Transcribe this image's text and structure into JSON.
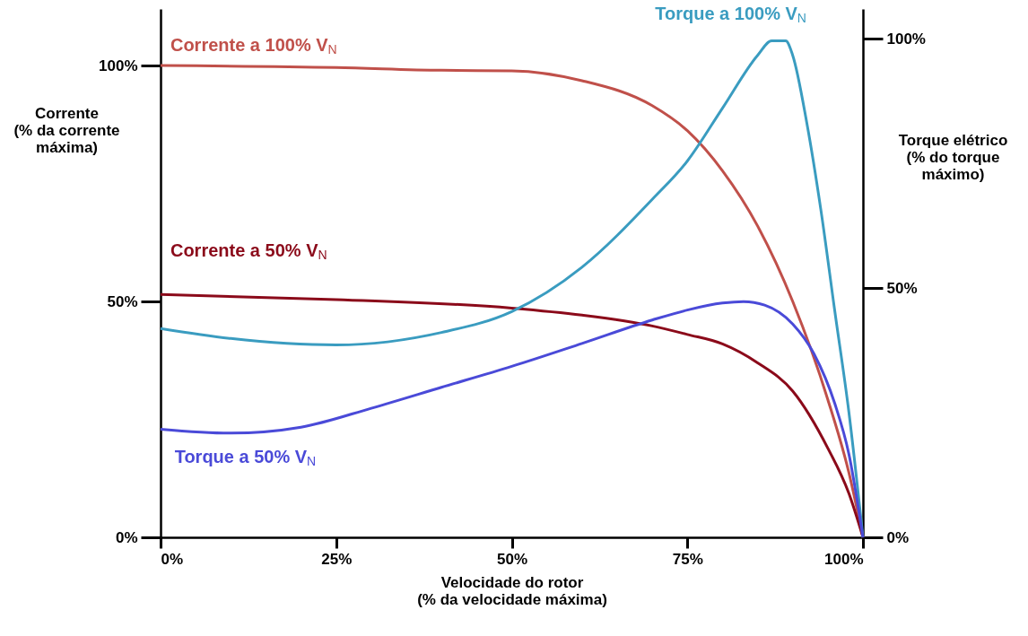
{
  "chart_data": {
    "type": "line",
    "xlabel": "Velocidade do rotor\n(% da velocidade máxima)",
    "ylabel": "Corrente\n(% da corrente\nmáxima)",
    "y2label": "Torque elétrico\n(% do torque\nmáximo)",
    "xlim": [
      0,
      100
    ],
    "xticks": [
      {
        "value": 0,
        "label": "0%"
      },
      {
        "value": 25,
        "label": "25%"
      },
      {
        "value": 50,
        "label": "50%"
      },
      {
        "value": 75,
        "label": "75%"
      },
      {
        "value": 100,
        "label": "100%"
      }
    ],
    "ylim": [
      0,
      112
    ],
    "yticks": [
      {
        "value": 0,
        "label": "0%"
      },
      {
        "value": 50,
        "label": "50%"
      },
      {
        "value": 100,
        "label": "100%"
      }
    ],
    "y2lim": [
      0,
      106
    ],
    "y2ticks": [
      {
        "value": 0,
        "label": "0%"
      },
      {
        "value": 50,
        "label": "50%"
      },
      {
        "value": 100,
        "label": "100%"
      }
    ],
    "series": [
      {
        "name": "Corrente a 100% V$_{N}$",
        "color": "#c0504a",
        "x": [
          0,
          25,
          40,
          50,
          60,
          70,
          75,
          80,
          85,
          90,
          95,
          98,
          100
        ],
        "values": [
          100,
          99.6,
          99,
          98.9,
          96.8,
          91.5,
          86.2,
          77.7,
          66,
          50,
          29.2,
          13.7,
          0
        ]
      },
      {
        "name": "Corrente a 50% V$_{N}$",
        "color": "#8b0a1a",
        "x": [
          0,
          25,
          50,
          60,
          70,
          75,
          80,
          85,
          90,
          95,
          98,
          100
        ],
        "values": [
          51.5,
          50.4,
          48.6,
          47.1,
          44.8,
          43,
          41,
          37,
          31,
          18.9,
          9.3,
          0
        ]
      },
      {
        "name": "Torque a 100% V$_{N}$",
        "color": "#3a9cc0",
        "axis": "y2",
        "x": [
          0,
          10,
          25,
          40,
          50,
          60,
          70,
          75,
          80,
          85,
          87,
          89,
          90,
          92,
          94,
          96,
          98,
          100
        ],
        "values": [
          41.9,
          39.9,
          38.6,
          41.1,
          45.3,
          54.2,
          67.8,
          75.5,
          86.1,
          96.7,
          99.6,
          99.6,
          96.7,
          83.2,
          65.8,
          45.3,
          25.1,
          0
        ]
      },
      {
        "name": "Torque a 50% V$_{N}$",
        "color": "#4a4ad8",
        "axis": "y2",
        "x": [
          0,
          10,
          20,
          30,
          40,
          50,
          60,
          70,
          75,
          80,
          83,
          86,
          90,
          93,
          96,
          98,
          100
        ],
        "values": [
          21.7,
          20.9,
          22.1,
          25.9,
          30.1,
          34.3,
          38.9,
          43.6,
          45.6,
          47,
          47.3,
          46.6,
          42.8,
          36.9,
          26.8,
          16.7,
          0
        ]
      }
    ]
  }
}
